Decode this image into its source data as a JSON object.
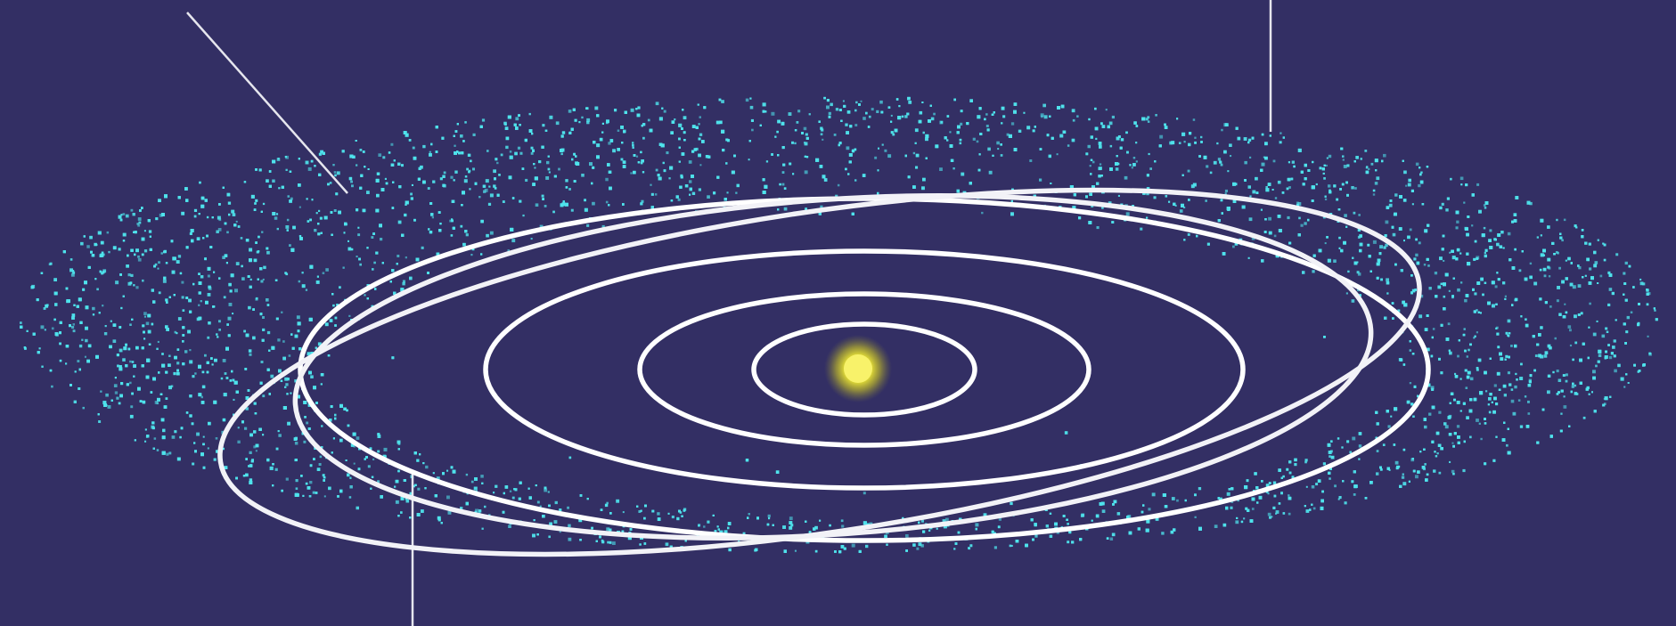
{
  "colors": {
    "background": "#332f64",
    "belt_particles": "#4fe3ec",
    "orbit_lines": "#ffffff",
    "sun_core": "#f8f26a",
    "sun_glow": "#e8e020",
    "pointer_lines": "#e6e6ee"
  },
  "objects": {
    "sun": "Sun",
    "planet_orbits": 4,
    "eccentric_orbits": 2,
    "particle_belt": "belt"
  }
}
